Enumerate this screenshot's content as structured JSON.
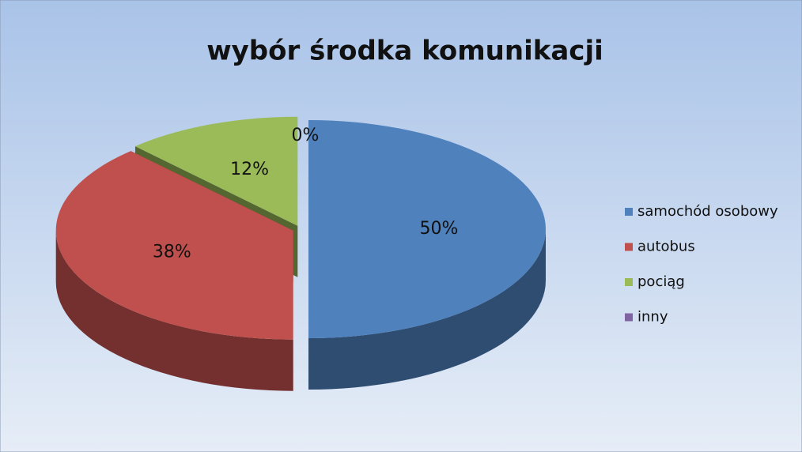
{
  "chart_data": {
    "type": "pie",
    "title": "wybór środka komunikacji",
    "categories": [
      "samochód osobowy",
      "autobus",
      "pociąg",
      "inny"
    ],
    "values": [
      50,
      38,
      12,
      0
    ],
    "value_labels": [
      "50%",
      "38%",
      "12%",
      "0%"
    ],
    "colors": [
      "#4f81bd",
      "#c0504d",
      "#9bbb59",
      "#8064a2"
    ],
    "legend": "right"
  }
}
